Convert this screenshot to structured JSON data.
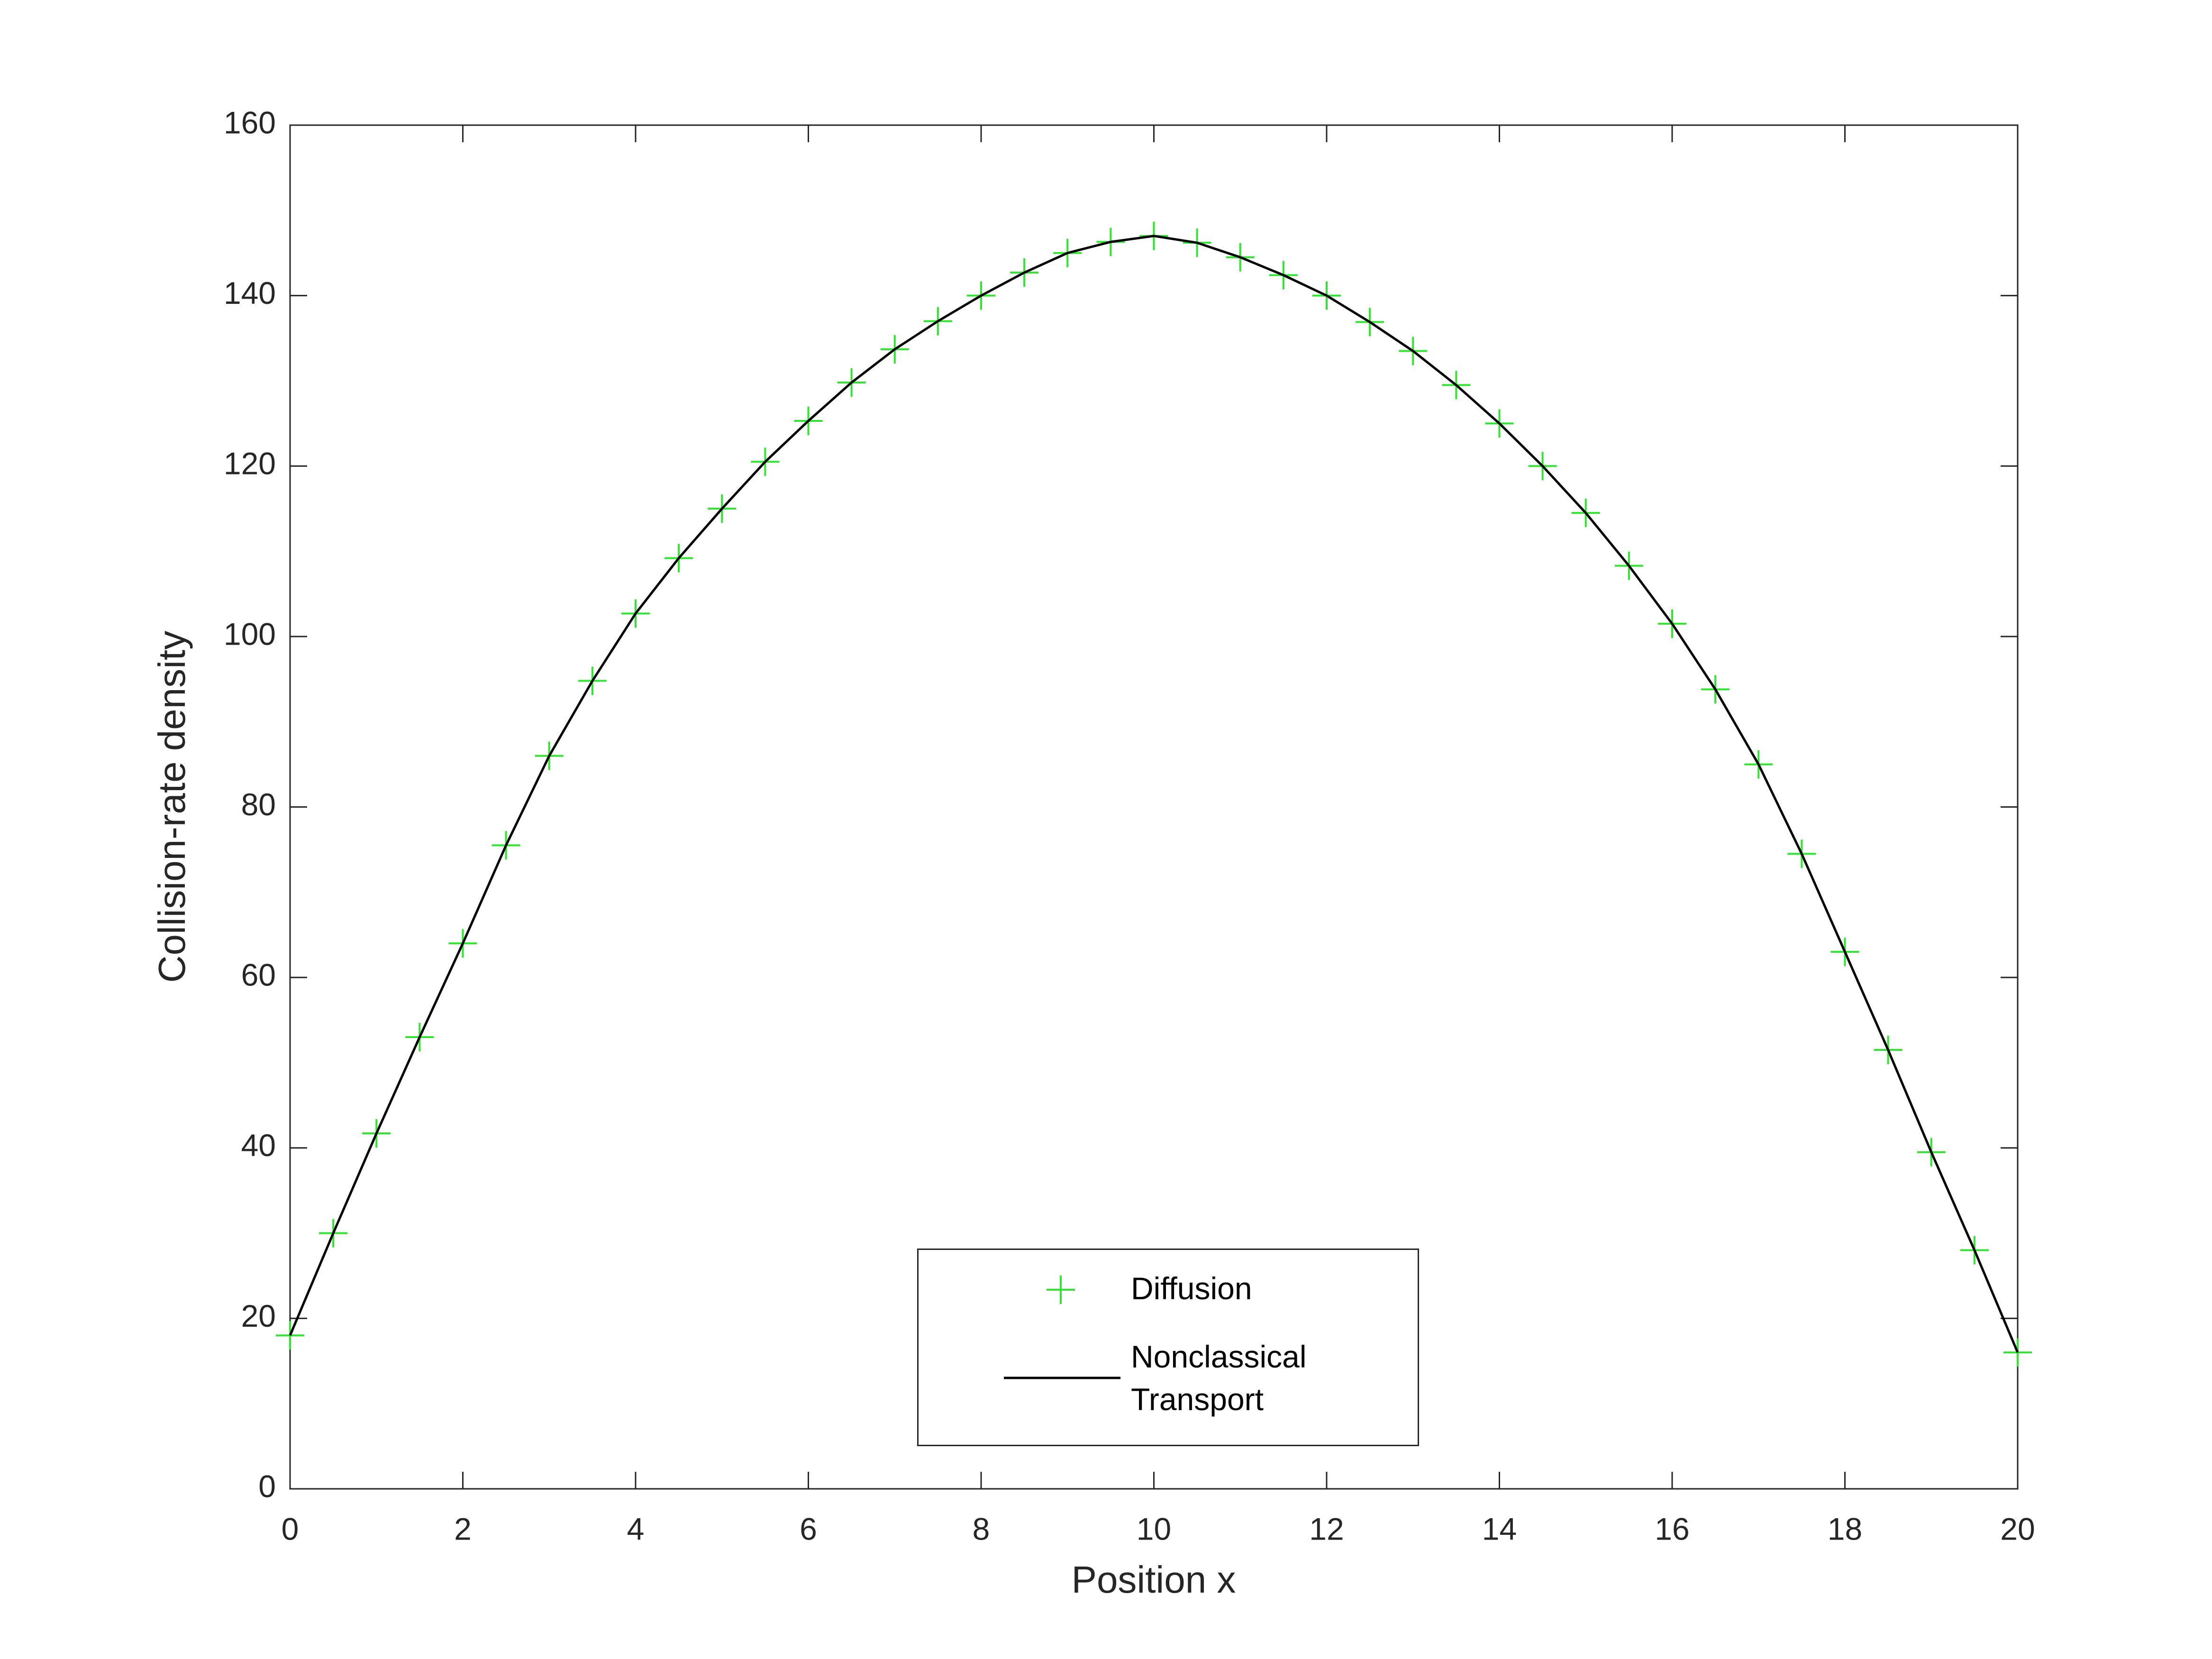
{
  "chart_data": {
    "type": "line",
    "xlabel": "Position x",
    "ylabel": "Collision-rate density",
    "x": [
      0,
      0.5,
      1,
      1.5,
      2,
      2.5,
      3,
      3.5,
      4,
      4.5,
      5,
      5.5,
      6,
      6.5,
      7,
      7.5,
      8,
      8.5,
      9,
      9.5,
      10,
      10.5,
      11,
      11.5,
      12,
      12.5,
      13,
      13.5,
      14,
      14.5,
      15,
      15.5,
      16,
      16.5,
      17,
      17.5,
      18,
      18.5,
      19,
      19.5,
      20
    ],
    "series": [
      {
        "name": "Diffusion",
        "color": "#2ee62e",
        "marker": "+",
        "values": [
          18,
          30,
          41.7,
          53,
          64,
          75.5,
          86,
          94.8,
          102.7,
          109.2,
          115,
          120.5,
          125.3,
          129.8,
          133.7,
          137,
          140,
          142.7,
          145,
          146.3,
          147,
          146.2,
          144.5,
          142.4,
          140,
          136.9,
          133.5,
          129.5,
          125,
          120,
          114.5,
          108.3,
          101.5,
          93.8,
          85,
          74.5,
          63,
          51.5,
          39.5,
          28,
          16
        ]
      },
      {
        "name": "Nonclassical Transport",
        "color": "#000000",
        "marker": "none",
        "values": [
          18,
          30,
          41.7,
          53,
          64,
          75.5,
          86,
          94.8,
          102.7,
          109.2,
          115,
          120.5,
          125.3,
          129.8,
          133.7,
          137,
          140,
          142.7,
          145,
          146.3,
          147,
          146.2,
          144.5,
          142.4,
          140,
          136.9,
          133.5,
          129.5,
          125,
          120,
          114.5,
          108.3,
          101.5,
          93.8,
          85,
          74.5,
          63,
          51.5,
          39.5,
          28,
          16
        ]
      }
    ],
    "xlim": [
      0,
      20
    ],
    "xticks": [
      0,
      2,
      4,
      6,
      8,
      10,
      12,
      14,
      16,
      18,
      20
    ],
    "ylim": [
      0,
      160
    ],
    "yticks": [
      0,
      20,
      40,
      60,
      80,
      100,
      120,
      140,
      160
    ],
    "grid": false,
    "legend": "lower center"
  }
}
